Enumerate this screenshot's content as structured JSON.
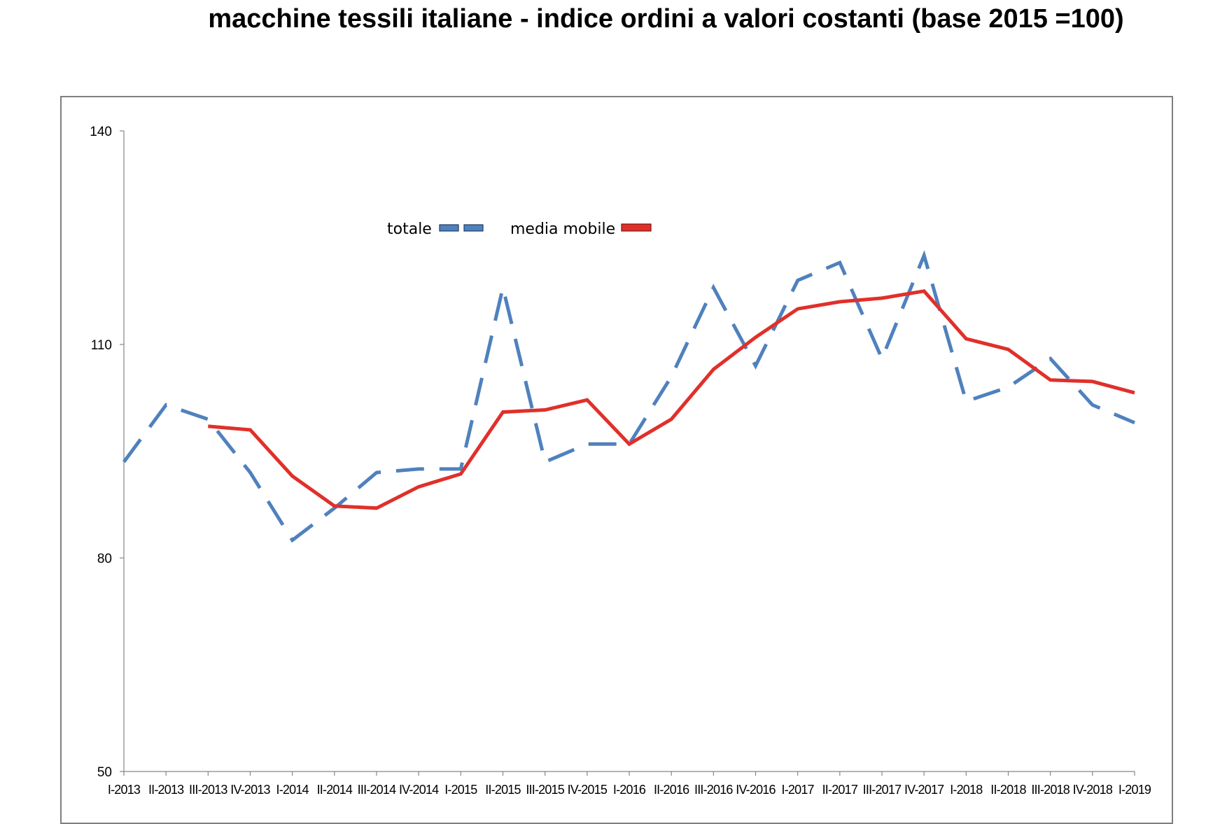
{
  "chart_data": {
    "type": "line",
    "title": "macchine tessili italiane - indice ordini a valori costanti (base 2015 =100)",
    "xlabel": "",
    "ylabel": "",
    "ylim": [
      50,
      140
    ],
    "yticks": [
      50,
      80,
      110,
      140
    ],
    "grid": false,
    "legend_position": "top-center",
    "categories": [
      "I-2013",
      "II-2013",
      "III-2013",
      "IV-2013",
      "I-2014",
      "II-2014",
      "III-2014",
      "IV-2014",
      "I-2015",
      "II-2015",
      "III-2015",
      "IV-2015",
      "I-2016",
      "II-2016",
      "III-2016",
      "IV-2016",
      "I-2017",
      "II-2017",
      "III-2017",
      "IV-2017",
      "I-2018",
      "II-2018",
      "III-2018",
      "IV-2018",
      "I-2019"
    ],
    "series": [
      {
        "name": "totale",
        "color": "#4f81bd",
        "style": "dashed",
        "values": [
          93.5,
          101.5,
          99.5,
          92.0,
          82.5,
          87.0,
          92.0,
          92.5,
          92.5,
          118.0,
          93.5,
          96.0,
          96.0,
          105.5,
          118.0,
          107.0,
          119.0,
          121.5,
          108.0,
          122.5,
          102.0,
          104.0,
          108.0,
          101.5,
          99.0
        ]
      },
      {
        "name": "media mobile",
        "color": "#e0302a",
        "style": "solid",
        "values": [
          null,
          null,
          98.5,
          98.0,
          91.5,
          87.3,
          87.0,
          90.0,
          91.8,
          100.5,
          100.8,
          102.2,
          96.0,
          99.5,
          106.5,
          111.0,
          115.0,
          116.0,
          116.5,
          117.5,
          110.8,
          109.3,
          105.0,
          104.8,
          103.2
        ]
      }
    ]
  }
}
